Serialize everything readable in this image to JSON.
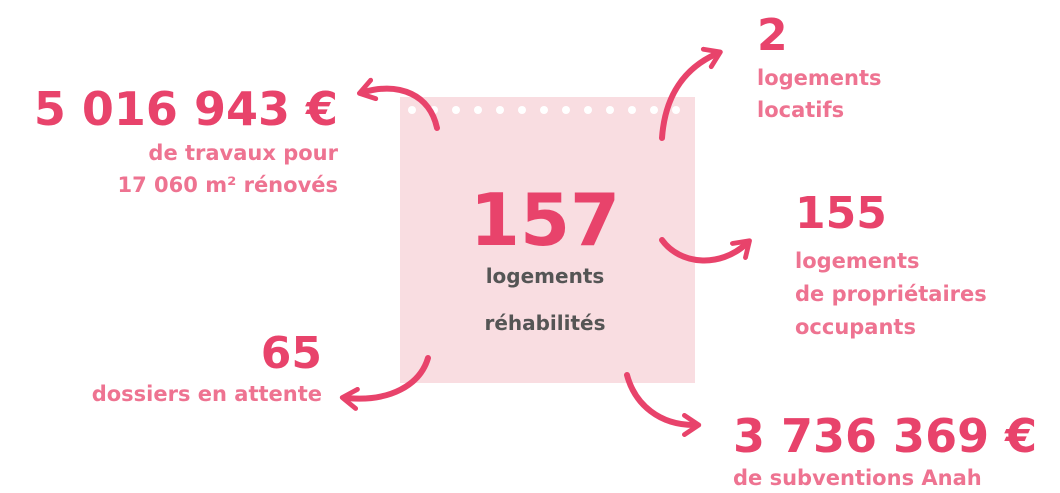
{
  "center": {
    "value": "157",
    "lines": [
      "logements",
      "réhabilités"
    ]
  },
  "items": [
    {
      "value": "5 016 943 €",
      "lines": [
        "de travaux pour",
        "17 060 m² rénovés"
      ]
    },
    {
      "value": "2",
      "lines": [
        "logements",
        "locatifs"
      ]
    },
    {
      "value": "155",
      "lines": [
        "logements",
        "de propriétaires",
        "occupants"
      ]
    },
    {
      "value": "65",
      "lines": [
        "dossiers en attente"
      ]
    },
    {
      "value": "3 736 369 €",
      "lines": [
        "de subventions Anah"
      ]
    }
  ]
}
